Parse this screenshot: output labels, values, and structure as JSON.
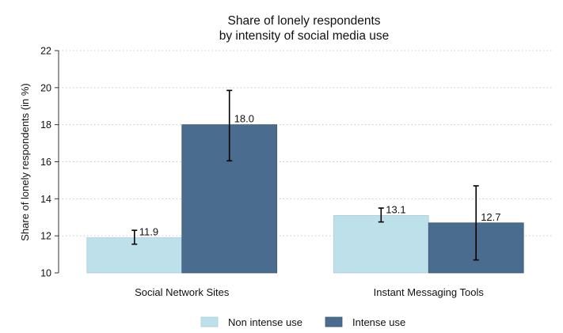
{
  "chart_data": {
    "type": "bar",
    "title_lines": [
      "Share of lonely respondents",
      "by intensity of social media use"
    ],
    "ylabel": "Share of lonely respondents (in %)",
    "xlabel": "",
    "ylim": [
      10,
      22
    ],
    "yticks": [
      "10",
      "12",
      "14",
      "16",
      "18",
      "20",
      "22"
    ],
    "grid": true,
    "legend_position": "bottom",
    "categories": [
      "Social Network Sites",
      "Instant Messaging Tools"
    ],
    "series": [
      {
        "name": "Non intense use",
        "color": "#bde0ea",
        "values": [
          11.9,
          13.1
        ],
        "labels": [
          "11.9",
          "13.1"
        ],
        "error_low": [
          11.55,
          12.75
        ],
        "error_high": [
          12.3,
          13.5
        ]
      },
      {
        "name": "Intense use",
        "color": "#4a6d8f",
        "values": [
          18.0,
          12.7
        ],
        "labels": [
          "18.0",
          "12.7"
        ],
        "error_low": [
          16.05,
          10.7
        ],
        "error_high": [
          19.85,
          14.7
        ]
      }
    ]
  }
}
